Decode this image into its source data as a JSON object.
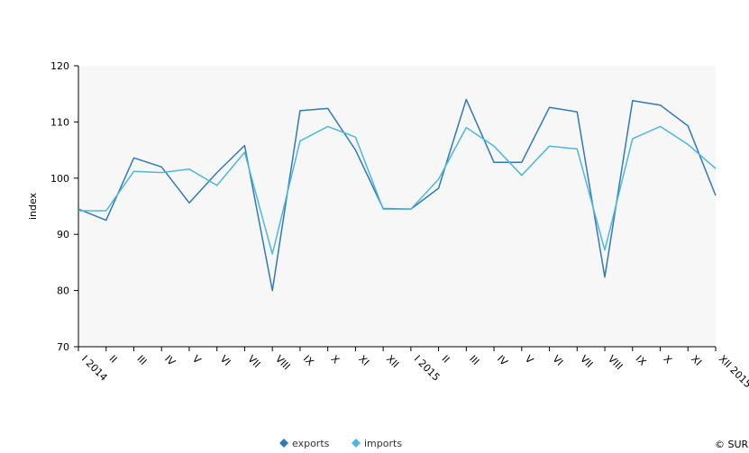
{
  "chart_data": {
    "type": "line",
    "title": "",
    "xlabel": "",
    "ylabel": "index",
    "ylim": [
      70,
      120
    ],
    "yticks": [
      70,
      80,
      90,
      100,
      110,
      120
    ],
    "grid": false,
    "legend_position": "bottom-center",
    "categories": [
      "I 2014",
      "II",
      "III",
      "IV",
      "V",
      "VI",
      "VII",
      "VIII",
      "IX",
      "X",
      "XI",
      "XII",
      "I 2015",
      "II",
      "III",
      "IV",
      "V",
      "VI",
      "VII",
      "VIII",
      "IX",
      "X",
      "XI",
      "XII 2015"
    ],
    "series": [
      {
        "name": "exports",
        "color": "#2f7ab8",
        "values": [
          94.5,
          92.5,
          103.6,
          102.0,
          95.6,
          101.0,
          105.8,
          80.0,
          112.0,
          112.4,
          105.0,
          94.6,
          94.5,
          98.2,
          114.0,
          102.8,
          102.8,
          112.6,
          111.8,
          82.4,
          113.8,
          113.0,
          109.3,
          96.9
        ]
      },
      {
        "name": "imports",
        "color": "#4cb8e0",
        "values": [
          94.2,
          94.2,
          101.2,
          101.0,
          101.6,
          98.7,
          104.6,
          86.5,
          106.6,
          109.2,
          107.3,
          94.5,
          94.5,
          99.8,
          109.0,
          105.7,
          100.5,
          105.7,
          105.2,
          87.2,
          107.0,
          109.2,
          106.0,
          101.7
        ]
      }
    ]
  },
  "credit": "© SURS"
}
